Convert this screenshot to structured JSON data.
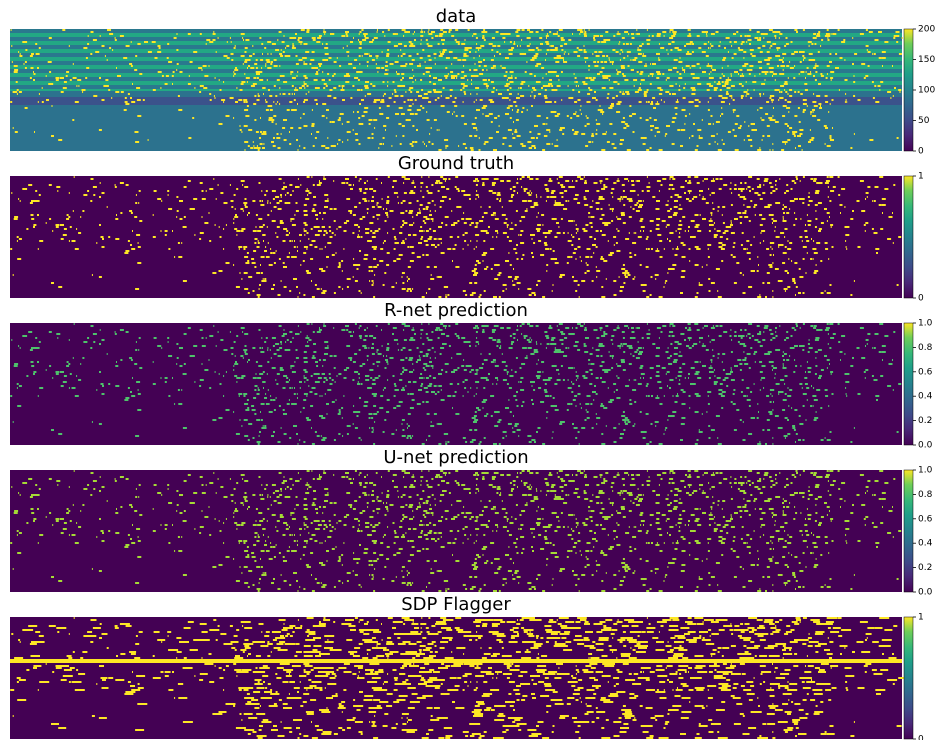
{
  "chart_data": [
    {
      "type": "heatmap",
      "title": "data",
      "colormap": "viridis",
      "clim": [
        0,
        200
      ],
      "cticks": [
        0,
        50,
        100,
        150,
        200
      ]
    },
    {
      "type": "heatmap",
      "title": "Ground truth",
      "colormap": "viridis",
      "clim": [
        0,
        1
      ],
      "cticks": [
        0,
        1
      ]
    },
    {
      "type": "heatmap",
      "title": "R-net prediction",
      "colormap": "viridis",
      "clim": [
        0,
        1
      ],
      "cticks": [
        {
          "value": 0,
          "label": "0.0"
        },
        {
          "value": 0.2,
          "label": "0.2"
        },
        {
          "value": 0.4,
          "label": "0.4"
        },
        {
          "value": 0.6,
          "label": "0.6"
        },
        {
          "value": 0.8,
          "label": "0.8"
        },
        {
          "value": 1,
          "label": "1.0"
        }
      ]
    },
    {
      "type": "heatmap",
      "title": "U-net prediction",
      "colormap": "viridis",
      "clim": [
        0,
        1
      ],
      "cticks": [
        {
          "value": 0,
          "label": "0.0"
        },
        {
          "value": 0.2,
          "label": "0.2"
        },
        {
          "value": 0.4,
          "label": "0.4"
        },
        {
          "value": 0.6,
          "label": "0.6"
        },
        {
          "value": 0.8,
          "label": "0.8"
        },
        {
          "value": 1,
          "label": "1.0"
        }
      ]
    },
    {
      "type": "heatmap",
      "title": "SDP Flagger",
      "colormap": "viridis",
      "clim": [
        0,
        1
      ],
      "cticks": [
        0,
        1
      ]
    }
  ]
}
